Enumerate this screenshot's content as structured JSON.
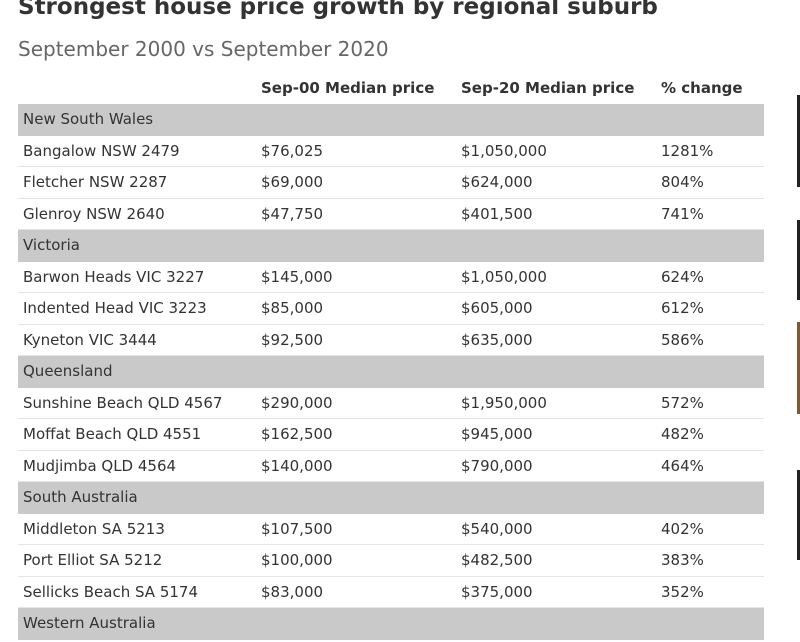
{
  "header": {
    "title": "Strongest house price growth by regional suburb",
    "subtitle": "September 2000 vs September 2020"
  },
  "table": {
    "columns": [
      "Sep-00 Median price",
      "Sep-20 Median price",
      "% change"
    ],
    "rows": [
      [
        "New South Wales"
      ],
      [
        "Bangalow NSW 2479",
        "$76,025",
        "$1,050,000",
        "1281%"
      ],
      [
        "Fletcher NSW 2287",
        "$69,000",
        "$624,000",
        "804%"
      ],
      [
        "Glenroy NSW 2640",
        "$47,750",
        "$401,500",
        "741%"
      ],
      [
        "Victoria"
      ],
      [
        "Barwon Heads VIC 3227",
        "$145,000",
        "$1,050,000",
        "624%"
      ],
      [
        "Indented Head VIC 3223",
        "$85,000",
        "$605,000",
        "612%"
      ],
      [
        "Kyneton VIC 3444",
        "$92,500",
        "$635,000",
        "586%"
      ],
      [
        "Queensland"
      ],
      [
        "Sunshine Beach QLD 4567",
        "$290,000",
        "$1,950,000",
        "572%"
      ],
      [
        "Moffat Beach QLD 4551",
        "$162,500",
        "$945,000",
        "482%"
      ],
      [
        "Mudjimba QLD 4564",
        "$140,000",
        "$790,000",
        "464%"
      ],
      [
        "South Australia"
      ],
      [
        "Middleton SA 5213",
        "$107,500",
        "$540,000",
        "402%"
      ],
      [
        "Port Elliot SA 5212",
        "$100,000",
        "$482,500",
        "383%"
      ],
      [
        "Sellicks Beach SA 5174",
        "$83,000",
        "$375,000",
        "352%"
      ],
      [
        "Western Australia"
      ]
    ]
  }
}
